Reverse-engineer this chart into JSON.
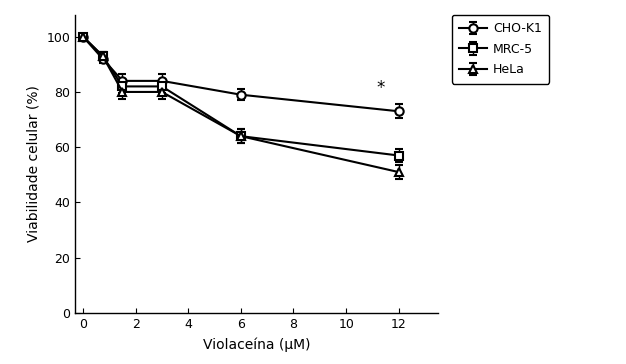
{
  "x": [
    0,
    0.75,
    1.5,
    3,
    6,
    12
  ],
  "cho_k1_y": [
    100,
    92,
    84,
    84,
    79,
    73
  ],
  "mrc5_y": [
    100,
    93,
    82,
    82,
    64,
    57
  ],
  "hela_y": [
    100,
    93,
    80,
    80,
    64,
    51
  ],
  "cho_k1_err": [
    0,
    1.5,
    2.5,
    2.5,
    2.0,
    2.5
  ],
  "mrc5_err": [
    0,
    1.5,
    2.5,
    2.5,
    2.5,
    2.5
  ],
  "hela_err": [
    0,
    1.5,
    2.5,
    2.5,
    2.5,
    2.5
  ],
  "xlabel": "Violaceína (μM)",
  "ylabel": "Viabilidade celular (%)",
  "xlim": [
    -0.3,
    13.5
  ],
  "ylim": [
    0,
    108
  ],
  "xticks": [
    0,
    2,
    4,
    6,
    8,
    10,
    12
  ],
  "yticks": [
    0,
    20,
    40,
    60,
    80,
    100
  ],
  "line_color": "#000000",
  "legend_labels": [
    "CHO-K1",
    "MRC-5",
    "HeLa"
  ],
  "star_x": 11.3,
  "star_y": 78,
  "star_text": "*"
}
